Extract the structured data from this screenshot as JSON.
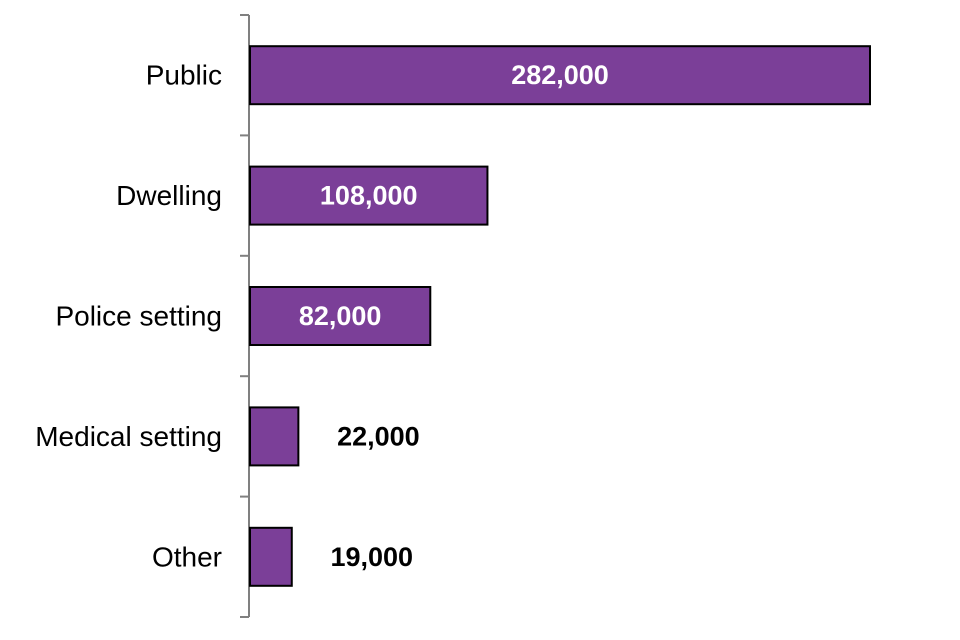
{
  "chart_data": {
    "type": "bar",
    "orientation": "horizontal",
    "categories": [
      "Public",
      "Dwelling",
      "Police setting",
      "Medical setting",
      "Other"
    ],
    "values": [
      282000,
      108000,
      82000,
      22000,
      19000
    ],
    "data_labels": [
      "282,000",
      "108,000",
      "82,000",
      "22,000",
      "19,000"
    ],
    "title": "",
    "xlabel": "",
    "ylabel": "",
    "xlim": [
      0,
      282000
    ],
    "grid": false,
    "bar_color": "#7B3F98",
    "bar_edge_color": "#000000",
    "label_inside_color": "#ffffff",
    "label_outside_color": "#000000"
  }
}
